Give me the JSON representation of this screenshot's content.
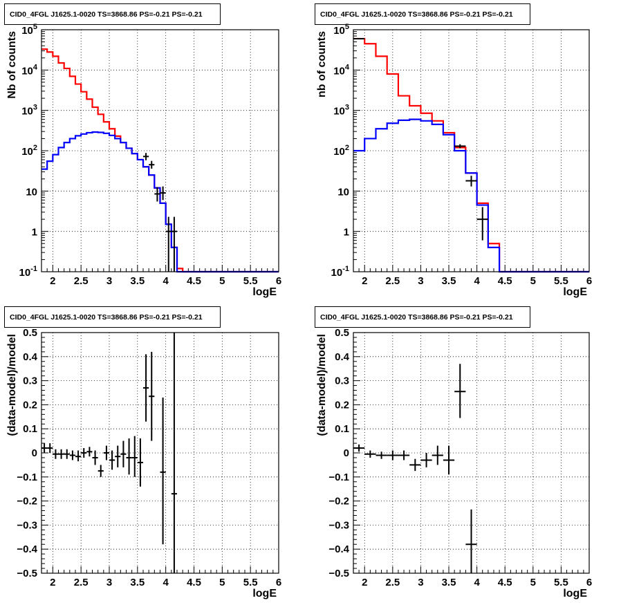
{
  "chart_data": [
    {
      "type": "line",
      "title": "CID0_4FGL J1625.1-0020 TS=3868.86 PS=-0.21 PS=-0.21",
      "xlabel": "logE",
      "ylabel": "Nb of counts",
      "xlim": [
        1.8,
        6.0
      ],
      "ylim": [
        0.1,
        100000
      ],
      "ylog": true,
      "grid": true,
      "xticks": [
        "2",
        "2.5",
        "3",
        "3.5",
        "4",
        "4.5",
        "5",
        "5.5",
        "6"
      ],
      "yticks": [
        "10^-1",
        "1",
        "10",
        "10^2",
        "10^3",
        "10^4",
        "10^5"
      ],
      "bin_edges": [
        1.8,
        1.9,
        2.0,
        2.1,
        2.2,
        2.3,
        2.4,
        2.5,
        2.6,
        2.7,
        2.8,
        2.9,
        3.0,
        3.1,
        3.2,
        3.3,
        3.4,
        3.5,
        3.6,
        3.7,
        3.8,
        3.9,
        4.0,
        4.1,
        4.2,
        4.3,
        4.4,
        4.5,
        4.6,
        4.7,
        4.8,
        4.9,
        5.0,
        5.1,
        5.2,
        5.3,
        5.4,
        5.5,
        5.6,
        5.7,
        5.8,
        5.9,
        6.0
      ],
      "series": [
        {
          "color": "#ff0000",
          "values": [
            33000,
            28000,
            22000,
            15000,
            11000,
            7000,
            4500,
            2900,
            1900,
            1200,
            800,
            520,
            350,
            230,
            160,
            115,
            85,
            60,
            40,
            25,
            12,
            5,
            1.5,
            0.4,
            0.12,
            0.1,
            0.1,
            0.1,
            0.1,
            0.1,
            0.1,
            0.1,
            0.1,
            0.1,
            0.1,
            0.1,
            0.1,
            0.1,
            0.1,
            0.1,
            0.1,
            0.1
          ]
        },
        {
          "color": "#0000ff",
          "values": [
            35,
            55,
            80,
            120,
            160,
            200,
            235,
            260,
            280,
            290,
            285,
            270,
            240,
            200,
            160,
            115,
            85,
            60,
            40,
            25,
            12,
            5,
            1.5,
            0.4,
            0.1,
            0.1,
            0.1,
            0.1,
            0.1,
            0.1,
            0.1,
            0.1,
            0.1,
            0.1,
            0.1,
            0.1,
            0.1,
            0.1,
            0.1,
            0.1,
            0.1,
            0.1
          ]
        }
      ],
      "points": [
        {
          "x": 3.65,
          "xerr": 0.05,
          "y": 72,
          "ylo": 58,
          "yhi": 88
        },
        {
          "x": 3.75,
          "xerr": 0.05,
          "y": 45,
          "ylo": 36,
          "yhi": 56
        },
        {
          "x": 3.85,
          "xerr": 0.05,
          "y": 8.5,
          "ylo": 5.5,
          "yhi": 12.5
        },
        {
          "x": 3.95,
          "xerr": 0.05,
          "y": 9.0,
          "ylo": 6.0,
          "yhi": 13
        },
        {
          "x": 4.05,
          "xerr": 0.05,
          "y": 1.0,
          "ylo": 0.1,
          "yhi": 2.3
        },
        {
          "x": 4.15,
          "xerr": 0.05,
          "y": 1.0,
          "ylo": 0.1,
          "yhi": 2.3
        }
      ]
    },
    {
      "type": "line",
      "title": "CID0_4FGL J1625.1-0020 TS=3868.86 PS=-0.21 PS=-0.21",
      "xlabel": "logE",
      "ylabel": "nb of counts",
      "xlim": [
        1.8,
        6.0
      ],
      "ylim": [
        0.1,
        100000
      ],
      "ylog": true,
      "grid": true,
      "xticks": [
        "2",
        "2.5",
        "3",
        "3.5",
        "4",
        "4.5",
        "5",
        "5.5",
        "6"
      ],
      "yticks": [
        "10^-1",
        "1",
        "10",
        "10^2",
        "10^3",
        "10^4",
        "10^5"
      ],
      "bin_edges": [
        1.8,
        2.0,
        2.2,
        2.4,
        2.6,
        2.8,
        3.0,
        3.2,
        3.4,
        3.6,
        3.8,
        4.0,
        4.2,
        4.4,
        4.6,
        4.8,
        5.0,
        5.2,
        5.4,
        5.6,
        5.8,
        6.0
      ],
      "series": [
        {
          "color": "#ff0000",
          "values": [
            60000,
            45000,
            22000,
            8000,
            2300,
            1300,
            850,
            550,
            280,
            120,
            28,
            5,
            0.5,
            0.1,
            0.1,
            0.1,
            0.1,
            0.1,
            0.1,
            0.1,
            0.1
          ]
        },
        {
          "color": "#0000ff",
          "values": [
            100,
            200,
            350,
            480,
            570,
            600,
            550,
            450,
            250,
            100,
            28,
            4.5,
            0.4,
            0.1,
            0.1,
            0.1,
            0.1,
            0.1,
            0.1,
            0.1,
            0.1
          ]
        }
      ],
      "points": [
        {
          "x": 1.9,
          "xerr": 0.1,
          "y": 60000,
          "ylo": 59000,
          "yhi": 61000
        },
        {
          "x": 3.7,
          "xerr": 0.1,
          "y": 130,
          "ylo": 115,
          "yhi": 145
        },
        {
          "x": 3.9,
          "xerr": 0.1,
          "y": 18,
          "ylo": 13,
          "yhi": 24
        },
        {
          "x": 4.1,
          "xerr": 0.1,
          "y": 2.0,
          "ylo": 0.6,
          "yhi": 4
        }
      ]
    },
    {
      "type": "scatter",
      "title": "CID0_4FGL J1625.1-0020 TS=3868.86 PS=-0.21 PS=-0.21",
      "xlabel": "logE",
      "ylabel": "(data-model)/model",
      "xlim": [
        1.8,
        6.0
      ],
      "ylim": [
        -0.5,
        0.5
      ],
      "grid": true,
      "xticks": [
        "2",
        "2.5",
        "3",
        "3.5",
        "4",
        "4.5",
        "5",
        "5.5",
        "6"
      ],
      "yticks": [
        "-0.5",
        "-0.4",
        "-0.3",
        "-0.2",
        "-0.1",
        "0",
        "0.1",
        "0.2",
        "0.3",
        "0.4",
        "0.5"
      ],
      "points": [
        {
          "x": 1.85,
          "xerr": 0.05,
          "y": 0.02,
          "ylo": 0.0,
          "yhi": 0.04
        },
        {
          "x": 1.95,
          "xerr": 0.05,
          "y": 0.02,
          "ylo": 0.0,
          "yhi": 0.04
        },
        {
          "x": 2.05,
          "xerr": 0.05,
          "y": -0.005,
          "ylo": -0.025,
          "yhi": 0.015
        },
        {
          "x": 2.15,
          "xerr": 0.05,
          "y": -0.005,
          "ylo": -0.025,
          "yhi": 0.015
        },
        {
          "x": 2.25,
          "xerr": 0.05,
          "y": -0.005,
          "ylo": -0.025,
          "yhi": 0.015
        },
        {
          "x": 2.35,
          "xerr": 0.05,
          "y": -0.01,
          "ylo": -0.03,
          "yhi": 0.01
        },
        {
          "x": 2.45,
          "xerr": 0.05,
          "y": -0.015,
          "ylo": -0.035,
          "yhi": 0.01
        },
        {
          "x": 2.55,
          "xerr": 0.05,
          "y": 0.0,
          "ylo": -0.02,
          "yhi": 0.02
        },
        {
          "x": 2.65,
          "xerr": 0.05,
          "y": 0.005,
          "ylo": -0.015,
          "yhi": 0.025
        },
        {
          "x": 2.75,
          "xerr": 0.05,
          "y": -0.02,
          "ylo": -0.05,
          "yhi": 0.01
        },
        {
          "x": 2.85,
          "xerr": 0.05,
          "y": -0.075,
          "ylo": -0.1,
          "yhi": -0.05
        },
        {
          "x": 2.95,
          "xerr": 0.05,
          "y": 0.0,
          "ylo": -0.03,
          "yhi": 0.03
        },
        {
          "x": 3.05,
          "xerr": 0.05,
          "y": -0.03,
          "ylo": -0.07,
          "yhi": 0.01
        },
        {
          "x": 3.15,
          "xerr": 0.05,
          "y": -0.015,
          "ylo": -0.06,
          "yhi": 0.03
        },
        {
          "x": 3.25,
          "xerr": 0.05,
          "y": -0.005,
          "ylo": -0.06,
          "yhi": 0.05
        },
        {
          "x": 3.35,
          "xerr": 0.05,
          "y": -0.02,
          "ylo": -0.09,
          "yhi": 0.06
        },
        {
          "x": 3.45,
          "xerr": 0.05,
          "y": -0.02,
          "ylo": -0.1,
          "yhi": 0.07
        },
        {
          "x": 3.55,
          "xerr": 0.05,
          "y": -0.04,
          "ylo": -0.14,
          "yhi": 0.06
        },
        {
          "x": 3.65,
          "xerr": 0.05,
          "y": 0.27,
          "ylo": 0.13,
          "yhi": 0.41
        },
        {
          "x": 3.75,
          "xerr": 0.05,
          "y": 0.235,
          "ylo": 0.05,
          "yhi": 0.42
        },
        {
          "x": 3.95,
          "xerr": 0.05,
          "y": -0.08,
          "ylo": -0.38,
          "yhi": 0.23
        },
        {
          "x": 4.15,
          "xerr": 0.05,
          "y": -0.17,
          "ylo": -0.5,
          "yhi": 0.5
        }
      ]
    },
    {
      "type": "scatter",
      "title": "CID0_4FGL J1625.1-0020 TS=3868.86 PS=-0.21 PS=-0.21",
      "xlabel": "logE",
      "ylabel": "(data-model)/model",
      "xlim": [
        1.8,
        6.0
      ],
      "ylim": [
        -0.5,
        0.5
      ],
      "grid": true,
      "xticks": [
        "2",
        "2.5",
        "3",
        "3.5",
        "4",
        "4.5",
        "5",
        "5.5",
        "6"
      ],
      "yticks": [
        "-0.5",
        "-0.4",
        "-0.3",
        "-0.2",
        "-0.1",
        "0",
        "0.1",
        "0.2",
        "0.3",
        "0.4",
        "0.5"
      ],
      "points": [
        {
          "x": 1.9,
          "xerr": 0.1,
          "y": 0.02,
          "ylo": 0.005,
          "yhi": 0.035
        },
        {
          "x": 2.1,
          "xerr": 0.1,
          "y": -0.005,
          "ylo": -0.02,
          "yhi": 0.01
        },
        {
          "x": 2.3,
          "xerr": 0.1,
          "y": -0.01,
          "ylo": -0.025,
          "yhi": 0.005
        },
        {
          "x": 2.5,
          "xerr": 0.1,
          "y": -0.01,
          "ylo": -0.03,
          "yhi": 0.01
        },
        {
          "x": 2.7,
          "xerr": 0.1,
          "y": -0.01,
          "ylo": -0.03,
          "yhi": 0.01
        },
        {
          "x": 2.9,
          "xerr": 0.1,
          "y": -0.05,
          "ylo": -0.075,
          "yhi": -0.025
        },
        {
          "x": 3.1,
          "xerr": 0.1,
          "y": -0.03,
          "ylo": -0.06,
          "yhi": 0.0
        },
        {
          "x": 3.3,
          "xerr": 0.1,
          "y": -0.01,
          "ylo": -0.05,
          "yhi": 0.03
        },
        {
          "x": 3.5,
          "xerr": 0.1,
          "y": -0.03,
          "ylo": -0.09,
          "yhi": 0.03
        },
        {
          "x": 3.7,
          "xerr": 0.1,
          "y": 0.255,
          "ylo": 0.145,
          "yhi": 0.37
        },
        {
          "x": 3.9,
          "xerr": 0.1,
          "y": -0.38,
          "ylo": -0.5,
          "yhi": -0.235
        }
      ]
    }
  ]
}
